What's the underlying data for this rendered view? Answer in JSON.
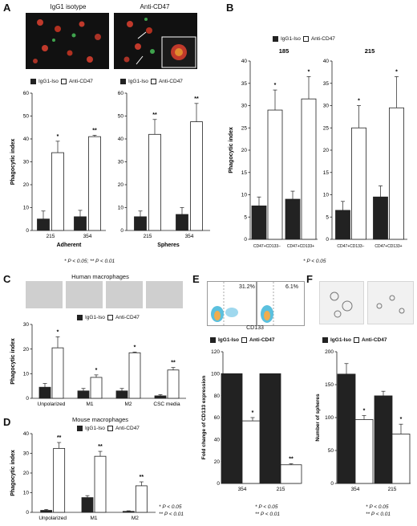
{
  "panels": {
    "A": {
      "letter": "A",
      "img_labels": [
        "IgG1 isotype",
        "Anti-CD47"
      ]
    },
    "B": {
      "letter": "B"
    },
    "C": {
      "letter": "C",
      "title": "Human macrophages"
    },
    "D": {
      "letter": "D",
      "title": "Mouse macrophages"
    },
    "E": {
      "letter": "E",
      "flow_pcts": [
        "31.2%",
        "6.1%"
      ],
      "flow_axis": "CD133"
    },
    "F": {
      "letter": "F"
    }
  },
  "legend": {
    "iso": "IgG1-Iso",
    "anti": "Anti-CD47",
    "iso_e": "IgG1-Iso",
    "anti_e": "Anti-CD47"
  },
  "notes": {
    "A": "* P < 0.05; ** P < 0.01",
    "B": "* P < 0.05",
    "D": [
      "* P < 0.05",
      "** P < 0.01"
    ],
    "E": [
      "* P < 0.05",
      "** P < 0.01"
    ],
    "F": [
      "* P < 0.05",
      "** P < 0.01"
    ]
  },
  "colors": {
    "iso": "#222222",
    "anti": "#ffffff"
  },
  "chart_data": [
    {
      "id": "A1",
      "type": "bar",
      "categories": [
        "215",
        "354"
      ],
      "group_label": "Adherent",
      "ylabel": "Phagocytic index",
      "ylim": [
        0,
        60
      ],
      "yticks": [
        0,
        10,
        20,
        30,
        40,
        50,
        60
      ],
      "series": [
        {
          "name": "IgG1-Iso",
          "values": [
            5,
            6
          ],
          "err": [
            3.5,
            2.8
          ]
        },
        {
          "name": "Anti-CD47",
          "values": [
            34,
            41
          ],
          "err": [
            5,
            0.6
          ]
        }
      ],
      "sig": [
        "*",
        "**"
      ]
    },
    {
      "id": "A2",
      "type": "bar",
      "categories": [
        "215",
        "354"
      ],
      "group_label": "Spheres",
      "ylim": [
        0,
        60
      ],
      "yticks": [
        0,
        10,
        20,
        30,
        40,
        50,
        60
      ],
      "series": [
        {
          "name": "IgG1-Iso",
          "values": [
            6,
            7
          ],
          "err": [
            2.5,
            3
          ]
        },
        {
          "name": "Anti-CD47",
          "values": [
            42,
            47.5
          ],
          "err": [
            6.5,
            8
          ]
        }
      ],
      "sig": [
        "**",
        "**"
      ]
    },
    {
      "id": "B1",
      "type": "bar",
      "title": "185",
      "categories": [
        "CD47+CD133−",
        "CD47+CD133+"
      ],
      "ylabel": "Phagocytic index",
      "ylim": [
        0,
        40
      ],
      "yticks": [
        0,
        5,
        10,
        15,
        20,
        25,
        30,
        35,
        40
      ],
      "series": [
        {
          "name": "IgG1-Iso",
          "values": [
            7.5,
            9
          ],
          "err": [
            2,
            1.8
          ]
        },
        {
          "name": "Anti-CD47",
          "values": [
            29,
            31.5
          ],
          "err": [
            4.5,
            5
          ]
        }
      ],
      "sig": [
        "*",
        "*"
      ]
    },
    {
      "id": "B2",
      "type": "bar",
      "title": "215",
      "categories": [
        "CD47+CD133−",
        "CD47+CD133+"
      ],
      "ylim": [
        0,
        40
      ],
      "yticks": [
        0,
        5,
        10,
        15,
        20,
        25,
        30,
        35,
        40
      ],
      "series": [
        {
          "name": "IgG1-Iso",
          "values": [
            6.5,
            9.5
          ],
          "err": [
            2,
            2.5
          ]
        },
        {
          "name": "Anti-CD47",
          "values": [
            25,
            29.5
          ],
          "err": [
            5,
            7
          ]
        }
      ],
      "sig": [
        "*",
        "*"
      ]
    },
    {
      "id": "C",
      "type": "bar",
      "categories": [
        "Unpolarized",
        "M1",
        "M2",
        "CSC media"
      ],
      "ylabel": "Phagocytic index",
      "ylim": [
        0,
        30
      ],
      "yticks": [
        0,
        10,
        20,
        30
      ],
      "series": [
        {
          "name": "IgG1-Iso",
          "values": [
            4.5,
            3,
            3,
            1
          ],
          "err": [
            1.5,
            1,
            1,
            0.5
          ]
        },
        {
          "name": "Anti-CD47",
          "values": [
            20.5,
            8.5,
            18.5,
            11.5
          ],
          "err": [
            4.5,
            1,
            0.3,
            1
          ]
        }
      ],
      "sig": [
        "*",
        "*",
        "*",
        "**"
      ]
    },
    {
      "id": "D",
      "type": "bar",
      "categories": [
        "Unpolarized",
        "M1",
        "M2"
      ],
      "ylabel": "Phagocytic index",
      "ylim": [
        0,
        40
      ],
      "yticks": [
        0,
        10,
        20,
        30,
        40
      ],
      "series": [
        {
          "name": "IgG1-Iso",
          "values": [
            1,
            7.5,
            0.5
          ],
          "err": [
            0.5,
            1,
            0.3
          ]
        },
        {
          "name": "Anti-CD47",
          "values": [
            32.5,
            28.5,
            13.5
          ],
          "err": [
            3,
            2.5,
            2
          ]
        }
      ],
      "sig": [
        "**",
        "**",
        "**"
      ]
    },
    {
      "id": "E",
      "type": "bar",
      "categories": [
        "354",
        "215"
      ],
      "ylabel": "Fold change of CD133 expression",
      "ylim": [
        0,
        120
      ],
      "yticks": [
        0,
        20,
        40,
        60,
        80,
        100,
        120
      ],
      "series": [
        {
          "name": "IgG1-Iso",
          "values": [
            100,
            100
          ],
          "err": [
            0,
            0
          ]
        },
        {
          "name": "Anti-CD47",
          "values": [
            57,
            17
          ],
          "err": [
            3,
            1
          ]
        }
      ],
      "sig": [
        "*",
        "**"
      ]
    },
    {
      "id": "F",
      "type": "bar",
      "categories": [
        "354",
        "215"
      ],
      "ylabel": "Number of spheres",
      "ylim": [
        0,
        200
      ],
      "yticks": [
        0,
        50,
        100,
        150,
        200
      ],
      "series": [
        {
          "name": "IgG1-Iso",
          "values": [
            166,
            133
          ],
          "err": [
            16,
            7
          ]
        },
        {
          "name": "Anti-CD47",
          "values": [
            97,
            75
          ],
          "err": [
            6,
            15
          ]
        }
      ],
      "sig": [
        "*",
        "*"
      ]
    }
  ]
}
